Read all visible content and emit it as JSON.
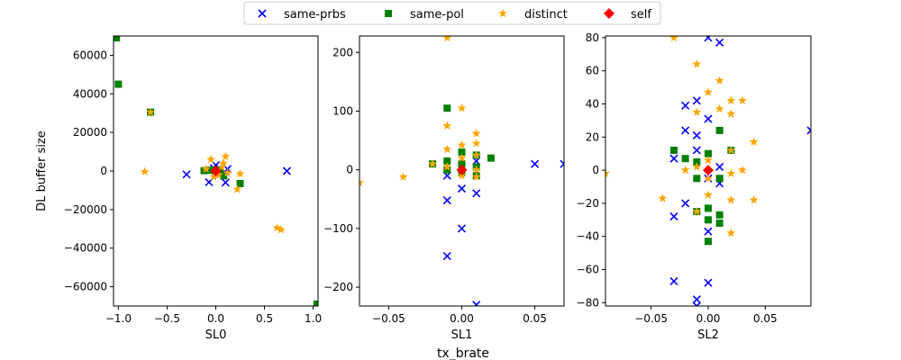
{
  "figure": {
    "shared_xlabel": "tx_brate"
  },
  "legend": {
    "placement": "top-center",
    "entries": [
      {
        "label": "same-prbs",
        "marker": "x",
        "color": "#0000ff"
      },
      {
        "label": "same-pol",
        "marker": "square",
        "color": "#008000"
      },
      {
        "label": "distinct",
        "marker": "star",
        "color": "#ffa500"
      },
      {
        "label": "self",
        "marker": "diamond",
        "color": "#ff0000"
      }
    ]
  },
  "chart_data": [
    {
      "type": "scatter",
      "title": "",
      "xlabel": "SL0",
      "ylabel": "DL buffer size",
      "xlim": [
        -1.05,
        1.05
      ],
      "ylim": [
        -70000,
        70000
      ],
      "xticks": [
        -1.0,
        -0.5,
        0.0,
        0.5,
        1.0
      ],
      "xtick_labels": [
        "−1.0",
        "−0.5",
        "0.0",
        "0.5",
        "1.0"
      ],
      "yticks": [
        -60000,
        -40000,
        -20000,
        0,
        20000,
        40000,
        60000
      ],
      "ytick_labels": [
        "−60000",
        "−40000",
        "−20000",
        "0",
        "20000",
        "40000",
        "60000"
      ],
      "grid": false,
      "series": [
        {
          "name": "same-prbs",
          "points": [
            [
              -0.3,
              -1800
            ],
            [
              -0.07,
              -5800
            ],
            [
              0.0,
              3000
            ],
            [
              0.05,
              -1500
            ],
            [
              0.1,
              -6000
            ],
            [
              0.12,
              1000
            ],
            [
              0.73,
              0
            ],
            [
              0.02,
              -500
            ],
            [
              -0.02,
              1500
            ]
          ]
        },
        {
          "name": "same-pol",
          "points": [
            [
              -1.02,
              69000
            ],
            [
              -1.0,
              45000
            ],
            [
              -0.67,
              30500
            ],
            [
              -0.12,
              200
            ],
            [
              -0.05,
              400
            ],
            [
              0.0,
              -600
            ],
            [
              0.04,
              300
            ],
            [
              0.08,
              -2500
            ],
            [
              0.25,
              -6500
            ],
            [
              1.04,
              -69000
            ]
          ]
        },
        {
          "name": "distinct",
          "points": [
            [
              -0.73,
              -300
            ],
            [
              -0.67,
              30500
            ],
            [
              -0.05,
              6000
            ],
            [
              0.08,
              4000
            ],
            [
              0.1,
              7500
            ],
            [
              0.12,
              -1000
            ],
            [
              0.22,
              -9500
            ],
            [
              0.25,
              -1500
            ],
            [
              0.63,
              -29500
            ],
            [
              0.67,
              -30500
            ],
            [
              -0.1,
              1000
            ],
            [
              0.03,
              -2000
            ],
            [
              0.06,
              2000
            ],
            [
              -0.02,
              -3000
            ]
          ]
        },
        {
          "name": "self",
          "points": [
            [
              0.0,
              0
            ]
          ]
        }
      ]
    },
    {
      "type": "scatter",
      "title": "",
      "xlabel": "SL1",
      "ylabel": "",
      "xlim": [
        -0.07,
        0.07
      ],
      "ylim": [
        -232,
        228
      ],
      "xticks": [
        -0.05,
        0.0,
        0.05
      ],
      "xtick_labels": [
        "−0.05",
        "0.00",
        "0.05"
      ],
      "yticks": [
        -200,
        -100,
        0,
        100,
        200
      ],
      "ytick_labels": [
        "−200",
        "−100",
        "0",
        "100",
        "200"
      ],
      "grid": false,
      "series": [
        {
          "name": "same-prbs",
          "points": [
            [
              -0.01,
              -147
            ],
            [
              -0.01,
              -52
            ],
            [
              0.0,
              -100
            ],
            [
              0.0,
              -32
            ],
            [
              0.01,
              -40
            ],
            [
              0.01,
              -230
            ],
            [
              0.05,
              10
            ],
            [
              0.07,
              10
            ],
            [
              -0.01,
              -10
            ],
            [
              0.0,
              5
            ],
            [
              0.01,
              15
            ]
          ]
        },
        {
          "name": "same-pol",
          "points": [
            [
              -0.02,
              10
            ],
            [
              -0.01,
              105
            ],
            [
              -0.01,
              15
            ],
            [
              -0.01,
              0
            ],
            [
              0.0,
              30
            ],
            [
              0.0,
              10
            ],
            [
              0.0,
              -5
            ],
            [
              0.01,
              25
            ],
            [
              0.01,
              5
            ],
            [
              0.01,
              -10
            ],
            [
              0.02,
              20
            ]
          ]
        },
        {
          "name": "distinct",
          "points": [
            [
              -0.07,
              -22
            ],
            [
              -0.04,
              -12
            ],
            [
              -0.02,
              10
            ],
            [
              -0.01,
              225
            ],
            [
              -0.01,
              75
            ],
            [
              -0.01,
              35
            ],
            [
              -0.01,
              5
            ],
            [
              0.0,
              105
            ],
            [
              0.0,
              42
            ],
            [
              0.0,
              20
            ],
            [
              0.0,
              -10
            ],
            [
              0.01,
              62
            ],
            [
              0.01,
              45
            ],
            [
              0.01,
              25
            ],
            [
              0.01,
              0
            ],
            [
              0.01,
              -12
            ]
          ]
        },
        {
          "name": "self",
          "points": [
            [
              0.0,
              0
            ]
          ]
        }
      ]
    },
    {
      "type": "scatter",
      "title": "",
      "xlabel": "SL2",
      "ylabel": "",
      "xlim": [
        -0.09,
        0.09
      ],
      "ylim": [
        -82,
        81
      ],
      "xticks": [
        -0.05,
        0.0,
        0.05
      ],
      "xtick_labels": [
        "−0.05",
        "0.00",
        "0.05"
      ],
      "yticks": [
        -80,
        -60,
        -40,
        -20,
        0,
        20,
        40,
        60,
        80
      ],
      "ytick_labels": [
        "−80",
        "−60",
        "−40",
        "−20",
        "0",
        "20",
        "40",
        "60",
        "80"
      ],
      "grid": false,
      "series": [
        {
          "name": "same-prbs",
          "points": [
            [
              -0.03,
              -67
            ],
            [
              -0.03,
              -28
            ],
            [
              -0.03,
              7
            ],
            [
              -0.02,
              39
            ],
            [
              -0.02,
              24
            ],
            [
              -0.02,
              -20
            ],
            [
              -0.01,
              42
            ],
            [
              -0.01,
              21
            ],
            [
              -0.01,
              -78
            ],
            [
              -0.01,
              -82
            ],
            [
              0.0,
              80
            ],
            [
              0.0,
              31
            ],
            [
              0.0,
              -68
            ],
            [
              0.0,
              -37
            ],
            [
              0.0,
              -5
            ],
            [
              0.01,
              77
            ],
            [
              0.01,
              2
            ],
            [
              0.09,
              24
            ],
            [
              -0.01,
              12
            ],
            [
              0.01,
              -8
            ]
          ]
        },
        {
          "name": "same-pol",
          "points": [
            [
              -0.03,
              12
            ],
            [
              -0.02,
              7
            ],
            [
              -0.01,
              5
            ],
            [
              -0.01,
              -5
            ],
            [
              -0.01,
              -25
            ],
            [
              0.0,
              10
            ],
            [
              0.0,
              -23
            ],
            [
              0.0,
              -30
            ],
            [
              0.0,
              -43
            ],
            [
              0.01,
              24
            ],
            [
              0.01,
              -5
            ],
            [
              0.01,
              -27
            ],
            [
              0.01,
              -32
            ],
            [
              0.02,
              12
            ]
          ]
        },
        {
          "name": "distinct",
          "points": [
            [
              -0.09,
              -2
            ],
            [
              -0.04,
              -17
            ],
            [
              -0.03,
              80
            ],
            [
              -0.02,
              0
            ],
            [
              -0.01,
              64
            ],
            [
              -0.01,
              35
            ],
            [
              -0.01,
              2
            ],
            [
              0.0,
              47
            ],
            [
              0.0,
              6
            ],
            [
              0.0,
              -5
            ],
            [
              0.0,
              -15
            ],
            [
              0.01,
              54
            ],
            [
              0.01,
              37
            ],
            [
              0.02,
              42
            ],
            [
              0.02,
              34
            ],
            [
              0.02,
              12
            ],
            [
              0.02,
              -2
            ],
            [
              0.02,
              -18
            ],
            [
              0.02,
              -38
            ],
            [
              0.03,
              42
            ],
            [
              0.03,
              0
            ],
            [
              0.04,
              17
            ],
            [
              0.04,
              -18
            ],
            [
              -0.01,
              -25
            ]
          ]
        },
        {
          "name": "self",
          "points": [
            [
              0.0,
              0
            ]
          ]
        }
      ]
    }
  ]
}
